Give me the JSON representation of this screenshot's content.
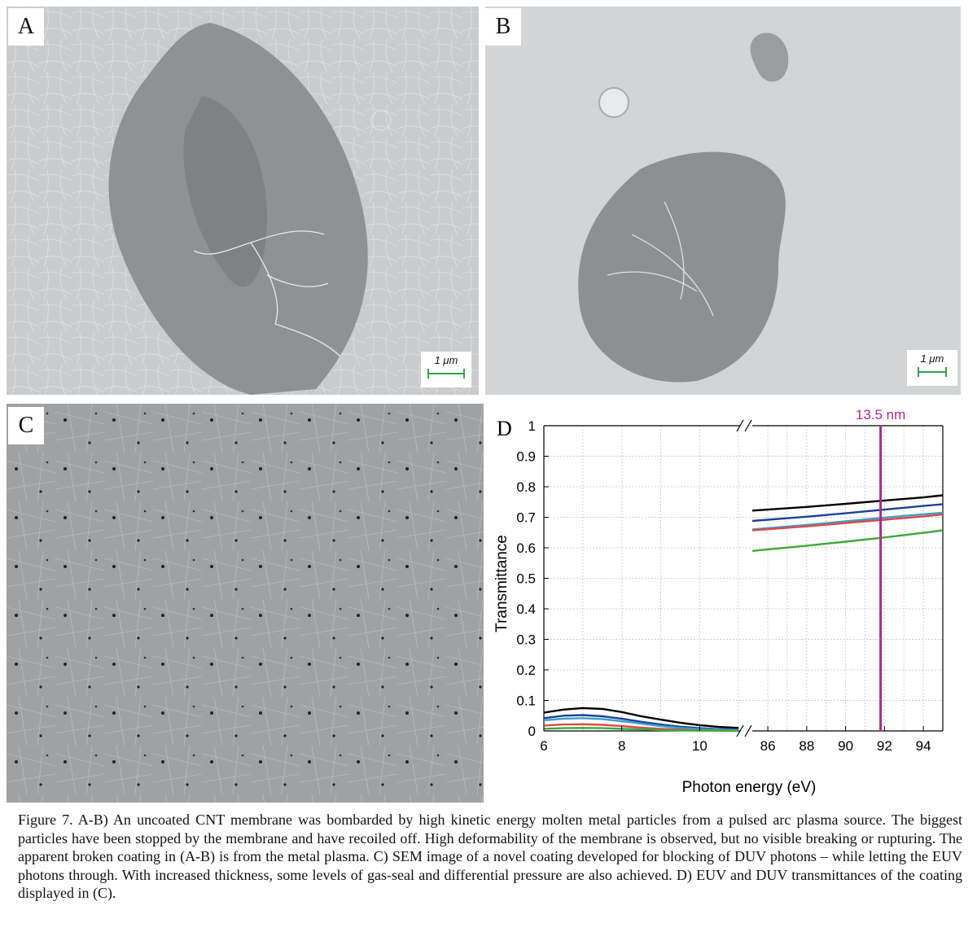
{
  "panels": {
    "a": {
      "letter": "A",
      "scale_bar": "1 μm"
    },
    "b": {
      "letter": "B",
      "scale_bar": "1 μm"
    },
    "c": {
      "letter": "C"
    },
    "d": {
      "letter": "D"
    }
  },
  "chart_data": {
    "type": "line",
    "xlabel": "Photon energy (eV)",
    "ylabel": "Transmittance",
    "ylim": [
      0,
      1
    ],
    "yticks": [
      "0",
      "0.1",
      "0.2",
      "0.3",
      "0.4",
      "0.5",
      "0.6",
      "0.7",
      "0.8",
      "0.9",
      "1"
    ],
    "x_segments": [
      {
        "xlim": [
          6,
          11.1
        ],
        "ticks": [
          "6",
          "8",
          "10"
        ]
      },
      {
        "xlim": [
          85.2,
          95
        ],
        "ticks": [
          "86",
          "88",
          "90",
          "92",
          "94"
        ]
      }
    ],
    "axis_break": true,
    "grid": true,
    "annotation": {
      "label": "13.5 nm",
      "x": 91.8,
      "color": "#b0288f"
    },
    "series": [
      {
        "color": "#000000",
        "duv": [
          [
            6,
            0.06
          ],
          [
            6.5,
            0.07
          ],
          [
            7,
            0.075
          ],
          [
            7.5,
            0.072
          ],
          [
            8,
            0.062
          ],
          [
            8.5,
            0.048
          ],
          [
            9,
            0.037
          ],
          [
            9.5,
            0.027
          ],
          [
            10,
            0.019
          ],
          [
            10.5,
            0.013
          ],
          [
            11,
            0.01
          ]
        ],
        "euv": [
          [
            85.2,
            0.722
          ],
          [
            88,
            0.734
          ],
          [
            90,
            0.744
          ],
          [
            92,
            0.755
          ],
          [
            94,
            0.765
          ],
          [
            95,
            0.772
          ]
        ]
      },
      {
        "color": "#1f3f9e",
        "duv": [
          [
            6,
            0.042
          ],
          [
            6.5,
            0.05
          ],
          [
            7,
            0.052
          ],
          [
            7.5,
            0.048
          ],
          [
            8,
            0.04
          ],
          [
            8.5,
            0.03
          ],
          [
            9,
            0.021
          ],
          [
            9.5,
            0.014
          ],
          [
            10,
            0.009
          ],
          [
            10.5,
            0.006
          ],
          [
            11,
            0.005
          ]
        ],
        "euv": [
          [
            85.2,
            0.688
          ],
          [
            88,
            0.702
          ],
          [
            90,
            0.713
          ],
          [
            92,
            0.725
          ],
          [
            94,
            0.737
          ],
          [
            95,
            0.743
          ]
        ]
      },
      {
        "color": "#3aa0c8",
        "duv": [
          [
            6,
            0.035
          ],
          [
            6.5,
            0.04
          ],
          [
            7,
            0.042
          ],
          [
            7.5,
            0.039
          ],
          [
            8,
            0.032
          ],
          [
            8.5,
            0.024
          ],
          [
            9,
            0.016
          ],
          [
            9.5,
            0.01
          ],
          [
            10,
            0.006
          ],
          [
            10.5,
            0.004
          ],
          [
            11,
            0.003
          ]
        ],
        "euv": [
          [
            85.2,
            0.66
          ],
          [
            88,
            0.675
          ],
          [
            90,
            0.687
          ],
          [
            92,
            0.699
          ],
          [
            94,
            0.71
          ],
          [
            95,
            0.715
          ]
        ]
      },
      {
        "color": "#e04848",
        "duv": [
          [
            6,
            0.018
          ],
          [
            6.5,
            0.021
          ],
          [
            7,
            0.022
          ],
          [
            7.5,
            0.02
          ],
          [
            8,
            0.016
          ],
          [
            8.5,
            0.011
          ],
          [
            9,
            0.007
          ],
          [
            9.5,
            0.004
          ],
          [
            10,
            0.002
          ],
          [
            10.5,
            0.001
          ],
          [
            11,
            0.001
          ]
        ],
        "euv": [
          [
            85.2,
            0.657
          ],
          [
            88,
            0.67
          ],
          [
            90,
            0.681
          ],
          [
            92,
            0.692
          ],
          [
            94,
            0.703
          ],
          [
            95,
            0.709
          ]
        ]
      },
      {
        "color": "#3aaa3a",
        "duv": [
          [
            6,
            0.007
          ],
          [
            6.5,
            0.009
          ],
          [
            7,
            0.01
          ],
          [
            7.5,
            0.009
          ],
          [
            8,
            0.007
          ],
          [
            8.5,
            0.005
          ],
          [
            9,
            0.003
          ],
          [
            9.5,
            0.002
          ],
          [
            10,
            0.001
          ],
          [
            10.5,
            0.001
          ],
          [
            11,
            0.0
          ]
        ],
        "euv": [
          [
            85.2,
            0.59
          ],
          [
            88,
            0.607
          ],
          [
            90,
            0.62
          ],
          [
            92,
            0.634
          ],
          [
            94,
            0.649
          ],
          [
            95,
            0.657
          ]
        ]
      }
    ]
  },
  "caption": "Figure 7. A-B) An uncoated CNT membrane was bombarded by high kinetic energy molten metal particles from a pulsed arc plasma source. The biggest particles have been stopped by the membrane and have recoiled off. High deformability of the membrane is observed, but no visible breaking or rupturing. The apparent broken coating in (A-B) is from the metal plasma. C) SEM image of a novel coating developed for blocking of DUV photons – while letting the EUV photons through. With increased thickness, some levels of gas-seal and differential pressure are also achieved. D) EUV and DUV transmittances of the coating displayed in (C)."
}
